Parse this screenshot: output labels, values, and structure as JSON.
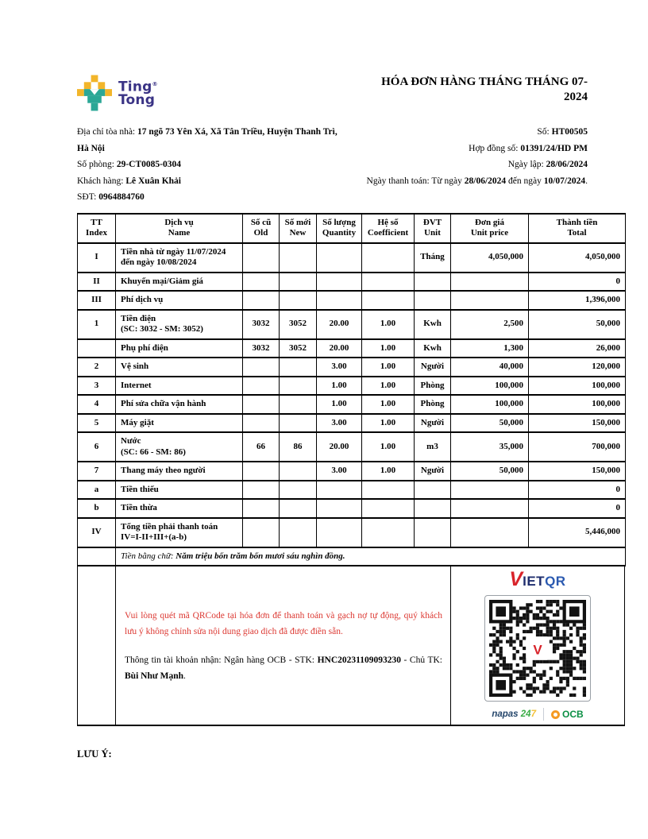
{
  "brand": {
    "name_line1": "Ting",
    "name_line2": "Tong",
    "registered_mark": "®",
    "colors": {
      "yellow": "#F2B52A",
      "teal": "#2BA796",
      "navy": "#3A3385"
    }
  },
  "title": {
    "line1": "HÓA ĐƠN HÀNG THÁNG THÁNG 07-",
    "line2": "2024"
  },
  "info": {
    "address_label": "Địa chỉ tòa nhà: ",
    "address_value": "17 ngõ 73 Yên Xá, Xã Tân Triều, Huyện Thanh Trì, Hà Nội",
    "room_label": "Số phòng: ",
    "room_value": "29-CT0085-0304",
    "customer_label": "Khách hàng: ",
    "customer_value": "Lê Xuân Khải",
    "phone_label": "SĐT: ",
    "phone_value": "0964884760",
    "number_label": "Số: ",
    "number_value": "HT00505",
    "contract_label": "Hợp đồng số: ",
    "contract_value": "01391/24/HD PM",
    "issue_date_label": "Ngày lập: ",
    "issue_date_value": "28/06/2024",
    "payment_label": "Ngày thanh toán: Từ ngày ",
    "payment_from": "28/06/2024",
    "payment_mid": " đến ngày ",
    "payment_to": "10/07/2024",
    "payment_end": "."
  },
  "table": {
    "headers": [
      {
        "l1": "TT",
        "l2": "Index"
      },
      {
        "l1": "Dịch vụ",
        "l2": "Name"
      },
      {
        "l1": "Số cũ",
        "l2": "Old"
      },
      {
        "l1": "Số mới",
        "l2": "New"
      },
      {
        "l1": "Số lượng",
        "l2": "Quantity"
      },
      {
        "l1": "Hệ số",
        "l2": "Coefficient"
      },
      {
        "l1": "ĐVT",
        "l2": "Unit"
      },
      {
        "l1": "Đơn giá",
        "l2": "Unit price"
      },
      {
        "l1": "Thành tiền",
        "l2": "Total"
      }
    ],
    "rows": [
      {
        "idx": "I",
        "name": "Tiền nhà từ ngày 11/07/2024\nđến ngày 10/08/2024",
        "old": "",
        "new": "",
        "qty": "",
        "coef": "",
        "unit": "Tháng",
        "price": "4,050,000",
        "total": "4,050,000"
      },
      {
        "idx": "II",
        "name": "Khuyến mại/Giảm giá",
        "old": "",
        "new": "",
        "qty": "",
        "coef": "",
        "unit": "",
        "price": "",
        "total": "0"
      },
      {
        "idx": "III",
        "name": "Phí dịch vụ",
        "old": "",
        "new": "",
        "qty": "",
        "coef": "",
        "unit": "",
        "price": "",
        "total": "1,396,000"
      },
      {
        "idx": "1",
        "name": "Tiền điện\n(SC: 3032 - SM: 3052)",
        "old": "3032",
        "new": "3052",
        "qty": "20.00",
        "coef": "1.00",
        "unit": "Kwh",
        "price": "2,500",
        "total": "50,000"
      },
      {
        "idx": "",
        "name": "Phụ phí điện",
        "old": "3032",
        "new": "3052",
        "qty": "20.00",
        "coef": "1.00",
        "unit": "Kwh",
        "price": "1,300",
        "total": "26,000"
      },
      {
        "idx": "2",
        "name": "Vệ sinh",
        "old": "",
        "new": "",
        "qty": "3.00",
        "coef": "1.00",
        "unit": "Người",
        "price": "40,000",
        "total": "120,000"
      },
      {
        "idx": "3",
        "name": "Internet",
        "old": "",
        "new": "",
        "qty": "1.00",
        "coef": "1.00",
        "unit": "Phòng",
        "price": "100,000",
        "total": "100,000"
      },
      {
        "idx": "4",
        "name": "Phí sửa chữa vận hành",
        "old": "",
        "new": "",
        "qty": "1.00",
        "coef": "1.00",
        "unit": "Phòng",
        "price": "100,000",
        "total": "100,000"
      },
      {
        "idx": "5",
        "name": "Máy giặt",
        "old": "",
        "new": "",
        "qty": "3.00",
        "coef": "1.00",
        "unit": "Người",
        "price": "50,000",
        "total": "150,000"
      },
      {
        "idx": "6",
        "name": "Nước\n(SC: 66 - SM: 86)",
        "old": "66",
        "new": "86",
        "qty": "20.00",
        "coef": "1.00",
        "unit": "m3",
        "price": "35,000",
        "total": "700,000"
      },
      {
        "idx": "7",
        "name": "Thang máy theo người",
        "old": "",
        "new": "",
        "qty": "3.00",
        "coef": "1.00",
        "unit": "Người",
        "price": "50,000",
        "total": "150,000"
      },
      {
        "idx": "a",
        "name": "Tiền thiếu",
        "old": "",
        "new": "",
        "qty": "",
        "coef": "",
        "unit": "",
        "price": "",
        "total": "0"
      },
      {
        "idx": "b",
        "name": "Tiền thừa",
        "old": "",
        "new": "",
        "qty": "",
        "coef": "",
        "unit": "",
        "price": "",
        "total": "0"
      },
      {
        "idx": "IV",
        "name": "Tổng tiền phải thanh toán\nIV=I-II+III+(a-b)",
        "old": "",
        "new": "",
        "qty": "",
        "coef": "",
        "unit": "",
        "price": "",
        "total": "5,446,000"
      }
    ],
    "amount_in_words_label": "Tiền bằng chữ: ",
    "amount_in_words_value": "Năm triệu bốn trăm bốn mươi sáu nghìn đồng."
  },
  "payment": {
    "note_red": "Vui lòng quét mã QRCode tại hóa đơn để thanh toán và gạch nợ tự động, quý khách lưu ý không chỉnh sửa nội dung giao dịch đã được điền sẵn.",
    "account_prefix": "Thông tin tài khoản nhận: Ngân hàng OCB - STK: ",
    "account_number": "HNC20231109093230",
    "account_mid": " - Chủ TK: ",
    "account_holder": "Bùi Như Mạnh",
    "account_end": ".",
    "vietqr_v": "V",
    "vietqr_iet": "IET",
    "vietqr_qr": "QR",
    "napas_name": "napas ",
    "napas_num_green": "24",
    "napas_num_yellow": "7",
    "ocb_name": "OCB"
  },
  "footer": {
    "note_label": "LƯU Ý:"
  }
}
